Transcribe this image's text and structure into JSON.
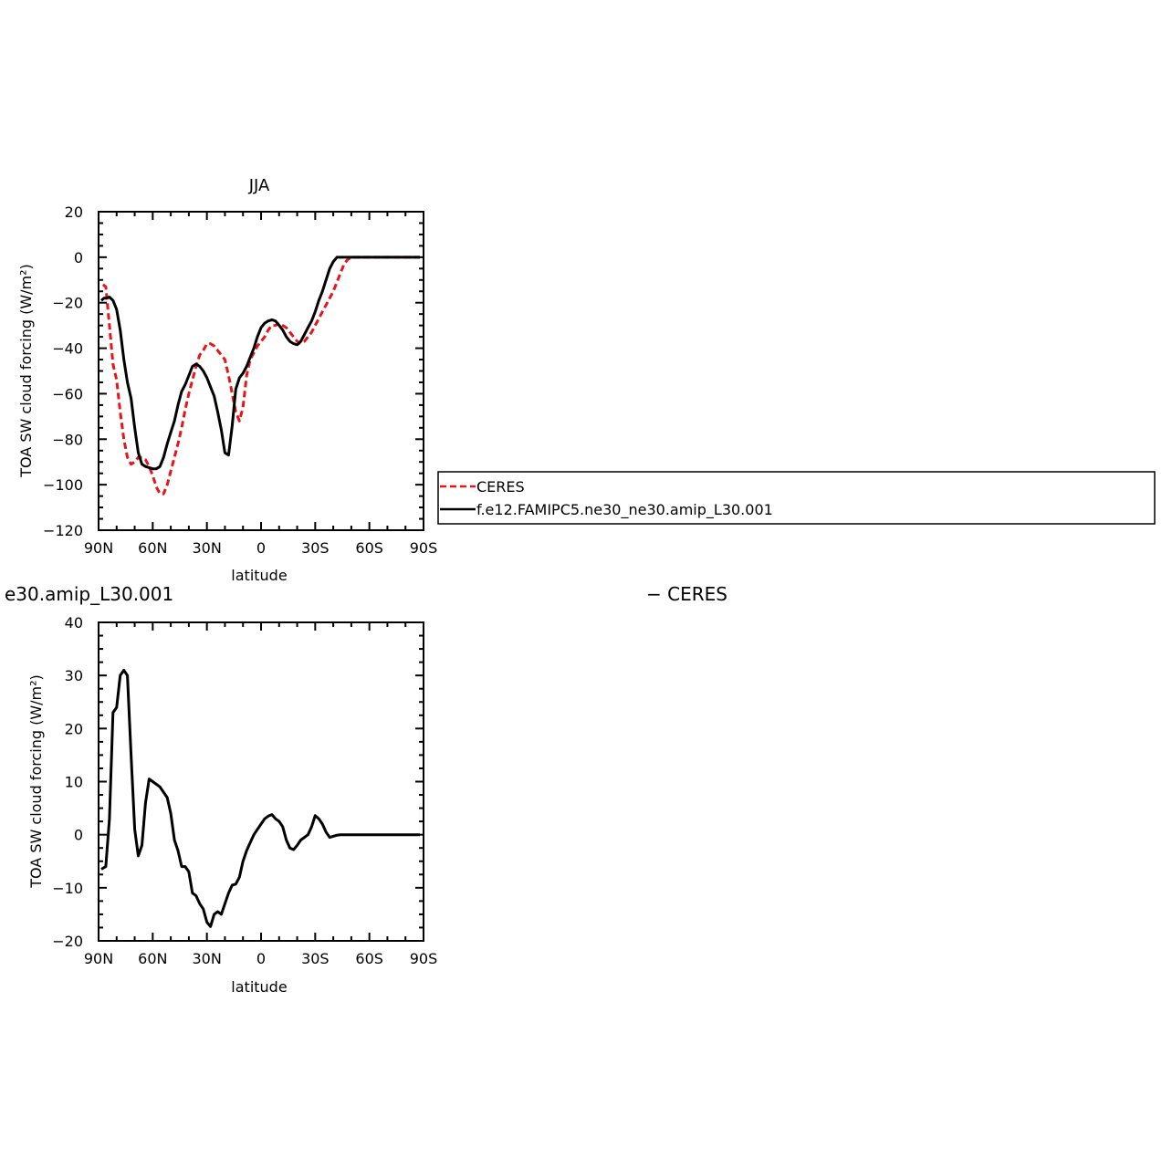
{
  "colors": {
    "ceres": "#e8141a",
    "model": "#000000"
  },
  "legend": {
    "entries": [
      {
        "label": "CERES",
        "style": "dashed",
        "color": "#e8141a"
      },
      {
        "label": "f.e12.FAMIPC5.ne30_ne30.amip_L30.001",
        "style": "solid",
        "color": "#000000"
      }
    ]
  },
  "chart_data": [
    {
      "type": "line",
      "title": "JJA",
      "xlabel": "latitude",
      "ylabel": "TOA SW cloud forcing (W/m²)",
      "xlim": [
        -90,
        90
      ],
      "ylim": [
        -120,
        20
      ],
      "x_ticks": [
        "90N",
        "60N",
        "30N",
        "0",
        "30S",
        "60S",
        "90S"
      ],
      "y_ticks": [
        "20",
        "0",
        "−20",
        "−40",
        "−60",
        "−80",
        "−100",
        "−120"
      ],
      "series": [
        {
          "name": "CERES",
          "style": "dashed",
          "color": "#e8141a",
          "x": [
            -87.5,
            -86,
            -84,
            -82,
            -80,
            -78,
            -76,
            -74,
            -72,
            -70,
            -68,
            -66,
            -64,
            -62,
            -60,
            -58,
            -56,
            -54,
            -52,
            -50,
            -48,
            -46,
            -44,
            -42,
            -40,
            -38,
            -36,
            -34,
            -32,
            -30,
            -28,
            -26,
            -24,
            -22,
            -20,
            -18,
            -16,
            -14,
            -12,
            -10,
            -8,
            -6,
            -4,
            -2,
            0,
            2,
            4,
            6,
            8,
            10,
            12,
            14,
            16,
            18,
            20,
            22,
            24,
            26,
            28,
            30,
            32,
            34,
            36,
            38,
            40,
            42,
            44,
            46,
            48,
            50,
            52,
            54,
            56,
            58,
            60,
            62,
            64,
            66,
            68,
            70,
            72,
            74,
            76,
            78,
            80,
            82,
            84,
            86,
            88
          ],
          "y": [
            -12,
            -13,
            -30,
            -47,
            -54,
            -68,
            -80,
            -88,
            -91,
            -90,
            -88,
            -88,
            -89,
            -92,
            -96,
            -101,
            -104,
            -104,
            -100,
            -94,
            -88,
            -82,
            -75,
            -67,
            -60,
            -54,
            -48,
            -43,
            -41,
            -38,
            -38,
            -39,
            -41,
            -43,
            -45,
            -52,
            -60,
            -68,
            -72,
            -66,
            -52,
            -45,
            -42,
            -39,
            -37,
            -35,
            -32,
            -30,
            -30,
            -29,
            -30,
            -31,
            -33,
            -35,
            -37,
            -38,
            -37,
            -35,
            -33,
            -30,
            -27,
            -24,
            -21,
            -18,
            -15,
            -11,
            -7,
            -3,
            -1,
            0,
            0,
            0,
            0,
            0,
            0,
            0,
            0,
            0,
            0,
            0,
            0,
            0,
            0,
            0,
            0,
            0,
            0,
            0,
            0
          ]
        },
        {
          "name": "f.e12.FAMIPC5.ne30_ne30.amip_L30.001",
          "style": "solid",
          "color": "#000000",
          "x": [
            -88.5,
            -87,
            -86,
            -84,
            -82,
            -80,
            -78,
            -76,
            -74,
            -72,
            -70,
            -68,
            -66,
            -64,
            -62,
            -60,
            -58,
            -56,
            -54,
            -52,
            -50,
            -48,
            -46,
            -44,
            -42,
            -40,
            -38,
            -36,
            -34,
            -32,
            -30,
            -28,
            -26,
            -24,
            -22,
            -20,
            -18,
            -16,
            -14,
            -12,
            -10,
            -8,
            -6,
            -4,
            -2,
            0,
            2,
            4,
            6,
            8,
            10,
            12,
            14,
            16,
            18,
            20,
            22,
            24,
            26,
            28,
            30,
            32,
            34,
            36,
            38,
            40,
            42,
            44,
            46,
            48,
            50,
            52,
            54,
            56,
            58,
            60,
            62,
            64,
            66,
            68,
            70,
            72,
            74,
            76,
            78,
            80,
            82,
            84,
            86,
            88
          ],
          "y": [
            -19,
            -18,
            -18,
            -17.5,
            -19,
            -23,
            -32,
            -45,
            -55,
            -62,
            -75,
            -86,
            -91,
            -92,
            -92.5,
            -93,
            -93,
            -92,
            -88,
            -82,
            -77,
            -72,
            -65,
            -59,
            -56,
            -52,
            -48,
            -47,
            -48,
            -50,
            -53,
            -57,
            -61,
            -68,
            -76,
            -86,
            -87,
            -74,
            -58,
            -53,
            -51,
            -48,
            -44,
            -40,
            -35,
            -31,
            -29,
            -28,
            -27.5,
            -28,
            -30,
            -32,
            -35,
            -37,
            -38,
            -38.5,
            -37,
            -34,
            -31,
            -28,
            -24,
            -19,
            -15,
            -10,
            -5,
            -2,
            0,
            0,
            0,
            0,
            0,
            0,
            0,
            0,
            0,
            0,
            0,
            0,
            0,
            0,
            0,
            0,
            0,
            0,
            0,
            0,
            0,
            0,
            0,
            0
          ]
        }
      ]
    },
    {
      "type": "line",
      "title": "e30.amip_L30.001",
      "title_right": "− CERES",
      "xlabel": "latitude",
      "ylabel": "TOA SW cloud forcing (W/m²)",
      "xlim": [
        -90,
        90
      ],
      "ylim": [
        -20,
        40
      ],
      "x_ticks": [
        "90N",
        "60N",
        "30N",
        "0",
        "30S",
        "60S",
        "90S"
      ],
      "y_ticks": [
        "40",
        "30",
        "20",
        "10",
        "0",
        "−10",
        "−20"
      ],
      "series": [
        {
          "style": "solid",
          "color": "#000000",
          "x": [
            -88.5,
            -86,
            -84,
            -82,
            -80,
            -78,
            -76,
            -74,
            -72,
            -70,
            -68,
            -66,
            -64,
            -62,
            -60,
            -58,
            -56,
            -54,
            -52,
            -50,
            -48,
            -46,
            -44,
            -42,
            -40,
            -38,
            -36,
            -34,
            -32,
            -30,
            -28,
            -26,
            -24,
            -22,
            -20,
            -18,
            -16,
            -14,
            -12,
            -10,
            -8,
            -6,
            -4,
            -2,
            0,
            2,
            4,
            6,
            8,
            10,
            12,
            14,
            16,
            18,
            20,
            22,
            24,
            26,
            28,
            30,
            32,
            34,
            36,
            38,
            40,
            42,
            44,
            46,
            48,
            50,
            52,
            54,
            56,
            58,
            60,
            62,
            64,
            66,
            68,
            70,
            72,
            74,
            76,
            78,
            80,
            82,
            84,
            86,
            88
          ],
          "y": [
            -6.5,
            -6,
            3,
            23,
            24,
            30,
            31,
            30,
            15,
            1,
            -4,
            -2,
            6,
            10.5,
            10,
            9.5,
            9,
            8,
            7,
            4,
            -1,
            -3,
            -6,
            -6,
            -7,
            -11,
            -11.5,
            -13,
            -14,
            -16.5,
            -17.3,
            -15,
            -14.5,
            -15,
            -13,
            -11,
            -9.5,
            -9.3,
            -8,
            -5,
            -3,
            -1.5,
            0,
            1,
            2,
            3,
            3.5,
            3.8,
            3,
            2.5,
            1.5,
            -1,
            -2.5,
            -2.8,
            -2,
            -1,
            -0.5,
            0,
            1.5,
            3.6,
            3,
            2,
            0.5,
            -0.5,
            -0.3,
            -0.1,
            0,
            0,
            0,
            0,
            0,
            0,
            0,
            0,
            0,
            0,
            0,
            0,
            0,
            0,
            0,
            0,
            0,
            0,
            0,
            0,
            0,
            0,
            0
          ]
        }
      ]
    }
  ]
}
